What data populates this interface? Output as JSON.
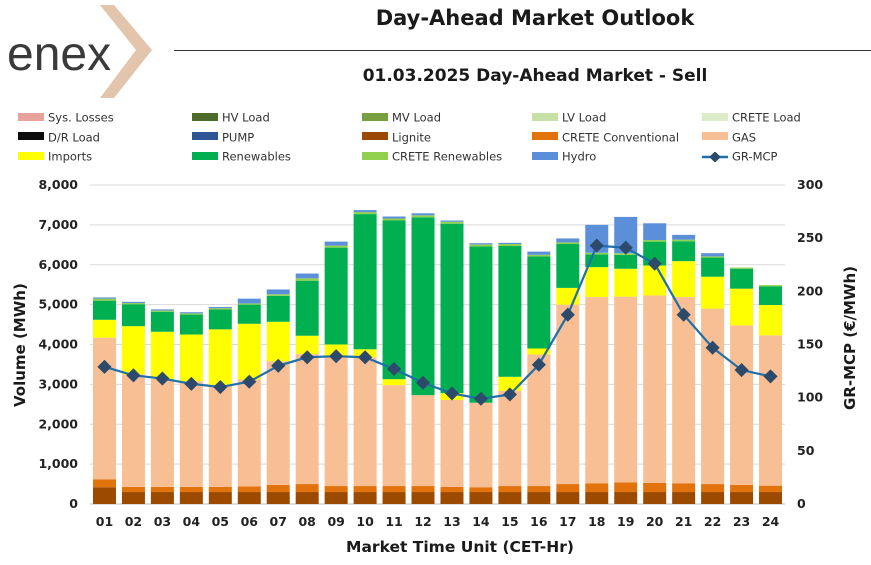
{
  "brand": {
    "logo_text": "enex",
    "accent": "#d9b59a"
  },
  "header": {
    "title": "Day-Ahead Market Outlook",
    "subtitle": "01.03.2025  Day-Ahead Market - Sell"
  },
  "legend": [
    {
      "label": "Sys. Losses",
      "color": "#e6a29b",
      "type": "bar"
    },
    {
      "label": "HV Load",
      "color": "#4d6b2b",
      "type": "bar"
    },
    {
      "label": "MV Load",
      "color": "#78a040",
      "type": "bar"
    },
    {
      "label": "LV Load",
      "color": "#c7e0a5",
      "type": "bar"
    },
    {
      "label": "CRETE Load",
      "color": "#dcebc8",
      "type": "bar"
    },
    {
      "label": "D/R Load",
      "color": "#0d0d0d",
      "type": "bar"
    },
    {
      "label": "PUMP",
      "color": "#2f5597",
      "type": "bar"
    },
    {
      "label": "Lignite",
      "color": "#9c4a00",
      "type": "bar"
    },
    {
      "label": "CRETE Conventional",
      "color": "#e2720b",
      "type": "bar"
    },
    {
      "label": "GAS",
      "color": "#f8be94",
      "type": "bar"
    },
    {
      "label": "Imports",
      "color": "#ffff00",
      "type": "bar"
    },
    {
      "label": "Renewables",
      "color": "#00b050",
      "type": "bar"
    },
    {
      "label": "CRETE Renewables",
      "color": "#92d050",
      "type": "bar"
    },
    {
      "label": "Hydro",
      "color": "#5b8fd9",
      "type": "bar"
    },
    {
      "label": "GR-MCP",
      "color": "#1f6fab",
      "type": "line"
    }
  ],
  "chart_data": {
    "type": "bar",
    "stacked": true,
    "categories": [
      "01",
      "02",
      "03",
      "04",
      "05",
      "06",
      "07",
      "08",
      "09",
      "10",
      "11",
      "12",
      "13",
      "14",
      "15",
      "16",
      "17",
      "18",
      "19",
      "20",
      "21",
      "22",
      "23",
      "24"
    ],
    "xlabel": "Market Time Unit (CET-Hr)",
    "ylabel": "Volume (MWh)",
    "y2label": "GR-MCP (€/MWh)",
    "ylim": [
      0,
      8000
    ],
    "y2lim": [
      0,
      300
    ],
    "yticks": [
      "0",
      "1,000",
      "2,000",
      "3,000",
      "4,000",
      "5,000",
      "6,000",
      "7,000",
      "8,000"
    ],
    "y2ticks": [
      "0",
      "50",
      "100",
      "150",
      "200",
      "250",
      "300"
    ],
    "series": [
      {
        "name": "Lignite",
        "color": "#9c4a00",
        "values": [
          420,
          300,
          300,
          300,
          300,
          300,
          300,
          300,
          300,
          300,
          300,
          300,
          300,
          300,
          300,
          300,
          300,
          300,
          300,
          300,
          300,
          300,
          300,
          300
        ]
      },
      {
        "name": "CRETE Conventional",
        "color": "#e2720b",
        "values": [
          200,
          130,
          130,
          130,
          130,
          140,
          180,
          200,
          150,
          150,
          150,
          150,
          130,
          120,
          150,
          150,
          200,
          220,
          240,
          230,
          220,
          200,
          180,
          160
        ]
      },
      {
        "name": "GAS",
        "color": "#f8be94",
        "values": [
          3550,
          2820,
          2710,
          2650,
          2560,
          2680,
          3100,
          3260,
          3250,
          3230,
          2530,
          2280,
          2180,
          2120,
          2390,
          3300,
          4500,
          4670,
          4660,
          4700,
          4670,
          4400,
          4000,
          3770
        ]
      },
      {
        "name": "Imports",
        "color": "#ffff00",
        "values": [
          450,
          1210,
          1180,
          1170,
          1390,
          1400,
          990,
          460,
          300,
          200,
          150,
          0,
          170,
          0,
          350,
          150,
          420,
          750,
          700,
          750,
          900,
          800,
          920,
          760
        ]
      },
      {
        "name": "Renewables",
        "color": "#00b050",
        "values": [
          480,
          550,
          500,
          500,
          500,
          480,
          650,
          1380,
          2430,
          3390,
          3980,
          4460,
          4250,
          3920,
          3280,
          2310,
          1100,
          320,
          350,
          600,
          500,
          480,
          500,
          470
        ]
      },
      {
        "name": "CRETE Renewables",
        "color": "#92d050",
        "values": [
          50,
          30,
          30,
          30,
          30,
          30,
          40,
          60,
          50,
          50,
          50,
          50,
          50,
          50,
          50,
          40,
          40,
          40,
          40,
          40,
          40,
          30,
          30,
          30
        ]
      },
      {
        "name": "Hydro",
        "color": "#5b8fd9",
        "values": [
          30,
          30,
          30,
          30,
          30,
          120,
          120,
          120,
          100,
          50,
          50,
          50,
          30,
          30,
          30,
          80,
          100,
          700,
          910,
          420,
          120,
          80,
          0,
          0
        ]
      }
    ],
    "line_series": {
      "name": "GR-MCP",
      "color": "#1f6fab",
      "axis": "right",
      "values": [
        129,
        121,
        118,
        113,
        110,
        115,
        130,
        138,
        139,
        138,
        127,
        114,
        104,
        99,
        103,
        131,
        178,
        243,
        241,
        226,
        178,
        147,
        126,
        120
      ]
    }
  }
}
